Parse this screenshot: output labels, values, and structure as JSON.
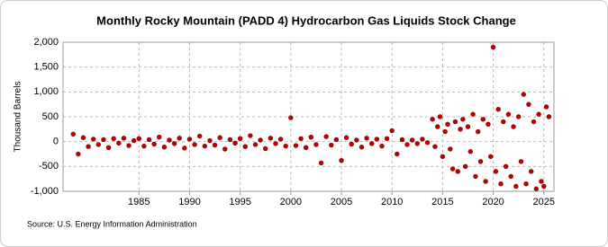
{
  "chart_data": {
    "type": "scatter",
    "title": "Monthly Rocky Mountain (PADD 4) Hydrocarbon Gas Liquids Stock Change",
    "y_label": "Thousand Barrels",
    "source": "Source: U.S. Energy Information Administration",
    "color": "#c00000",
    "grid": true,
    "xlim": [
      1977.5,
      2026
    ],
    "ylim": [
      -1000,
      2000
    ],
    "xticks": [
      1985,
      1990,
      1995,
      2000,
      2005,
      2010,
      2015,
      2020,
      2025
    ],
    "yticks": [
      {
        "value": 2000,
        "label": "2,000"
      },
      {
        "value": 1500,
        "label": "1,500"
      },
      {
        "value": 1000,
        "label": "1,000"
      },
      500,
      0,
      -500,
      {
        "value": -1000,
        "label": "-1,000"
      }
    ],
    "x": [
      1978.5,
      1979,
      1979.5,
      1980,
      1980.5,
      1981,
      1981.5,
      1982,
      1982.5,
      1983,
      1983.5,
      1984,
      1984.5,
      1985,
      1985.5,
      1986,
      1986.5,
      1987,
      1987.5,
      1988,
      1988.5,
      1989,
      1989.5,
      1990,
      1990.5,
      1991,
      1991.5,
      1992,
      1992.5,
      1993,
      1993.5,
      1994,
      1994.5,
      1995,
      1995.5,
      1996,
      1996.5,
      1997,
      1997.5,
      1998,
      1998.5,
      1999,
      1999.5,
      2000,
      2000.5,
      2001,
      2001.5,
      2002,
      2002.5,
      2003,
      2003.5,
      2004,
      2004.5,
      2005,
      2005.5,
      2006,
      2006.5,
      2007,
      2007.5,
      2008,
      2008.5,
      2009,
      2009.5,
      2010,
      2010.5,
      2011,
      2011.5,
      2012,
      2012.5,
      2013,
      2013.5,
      2014,
      2014.25,
      2014.5,
      2014.75,
      2015,
      2015.25,
      2015.5,
      2015.75,
      2016,
      2016.25,
      2016.5,
      2016.75,
      2017,
      2017.25,
      2017.5,
      2017.75,
      2018,
      2018.25,
      2018.5,
      2018.75,
      2019,
      2019.25,
      2019.5,
      2019.75,
      2020,
      2020.25,
      2020.5,
      2020.75,
      2021,
      2021.25,
      2021.5,
      2021.75,
      2022,
      2022.25,
      2022.5,
      2022.75,
      2023,
      2023.25,
      2023.5,
      2023.75,
      2024,
      2024.25,
      2024.5,
      2024.75,
      2025,
      2025.25,
      2025.5
    ],
    "values": [
      150,
      -250,
      80,
      -100,
      50,
      -60,
      40,
      -120,
      60,
      -30,
      70,
      -80,
      20,
      60,
      -90,
      40,
      -50,
      90,
      -110,
      30,
      -40,
      70,
      -130,
      50,
      -60,
      110,
      -90,
      20,
      -70,
      80,
      -150,
      40,
      -30,
      60,
      -100,
      120,
      -60,
      30,
      -140,
      70,
      -40,
      50,
      -90,
      480,
      -80,
      60,
      -120,
      90,
      -60,
      -430,
      100,
      -70,
      40,
      -380,
      80,
      -50,
      30,
      -110,
      70,
      -40,
      50,
      -90,
      60,
      220,
      -250,
      40,
      -60,
      30,
      -40,
      50,
      -20,
      450,
      -100,
      300,
      500,
      -300,
      200,
      350,
      -150,
      -550,
      400,
      -600,
      250,
      450,
      -500,
      300,
      -200,
      550,
      -700,
      200,
      -400,
      450,
      -800,
      350,
      -300,
      1900,
      -600,
      650,
      -850,
      400,
      -500,
      550,
      -700,
      300,
      -900,
      500,
      -400,
      950,
      -850,
      750,
      -600,
      400,
      -950,
      550,
      -800,
      -900,
      700,
      500
    ]
  }
}
